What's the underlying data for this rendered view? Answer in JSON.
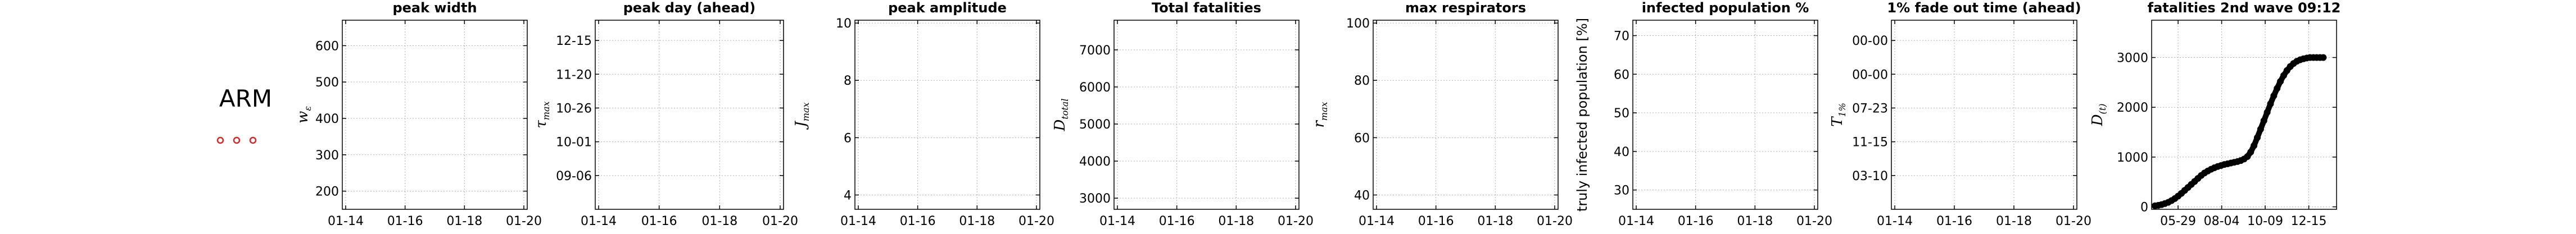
{
  "country": {
    "code": "ARM",
    "marker_color": "#d62728"
  },
  "chart_data": [
    {
      "type": "line",
      "title": "peak width",
      "ylabel_tex": [
        "w",
        "ε"
      ],
      "ylabel_plain": "",
      "xticks": [
        "01-14",
        "01-16",
        "01-18",
        "01-20"
      ],
      "yticks": [
        "200",
        "300",
        "400",
        "500",
        "600"
      ],
      "ylim": [
        150,
        670
      ],
      "ytick_values": [
        200,
        300,
        400,
        500,
        600
      ],
      "grid": true,
      "series": []
    },
    {
      "type": "line",
      "title": "peak day (ahead)",
      "ylabel_tex": [
        "τ",
        "max"
      ],
      "ylabel_plain": "",
      "xticks": [
        "01-14",
        "01-16",
        "01-18",
        "01-20"
      ],
      "yticks": [
        "09-06",
        "10-01",
        "10-26",
        "11-20",
        "12-15"
      ],
      "ylim": [
        0,
        5.6
      ],
      "ytick_values": [
        1,
        2,
        3,
        4,
        5
      ],
      "grid": true,
      "series": []
    },
    {
      "type": "line",
      "title": "peak amplitude",
      "ylabel_tex": [
        "J",
        "max"
      ],
      "ylabel_plain": "",
      "xticks": [
        "01-14",
        "01-16",
        "01-18",
        "01-20"
      ],
      "yticks": [
        "4",
        "6",
        "8",
        "10"
      ],
      "ylim": [
        3.5,
        10.1
      ],
      "ytick_values": [
        4,
        6,
        8,
        10
      ],
      "grid": true,
      "series": []
    },
    {
      "type": "line",
      "title": "Total fatalities",
      "ylabel_tex": [
        "D",
        "total"
      ],
      "ylabel_plain": "",
      "xticks": [
        "01-14",
        "01-16",
        "01-18",
        "01-20"
      ],
      "yticks": [
        "3000",
        "4000",
        "5000",
        "6000",
        "7000"
      ],
      "ylim": [
        2700,
        7800
      ],
      "ytick_values": [
        3000,
        4000,
        5000,
        6000,
        7000
      ],
      "grid": true,
      "series": []
    },
    {
      "type": "line",
      "title": "max respirators",
      "ylabel_tex": [
        "r",
        "max"
      ],
      "ylabel_plain": "",
      "xticks": [
        "01-14",
        "01-16",
        "01-18",
        "01-20"
      ],
      "yticks": [
        "40",
        "60",
        "80",
        "100"
      ],
      "ylim": [
        35,
        101
      ],
      "ytick_values": [
        40,
        60,
        80,
        100
      ],
      "grid": true,
      "series": []
    },
    {
      "type": "line",
      "title": "infected population %",
      "ylabel_tex": null,
      "ylabel_plain": "truly infected population [%]",
      "xticks": [
        "01-14",
        "01-16",
        "01-18",
        "01-20"
      ],
      "yticks": [
        "30",
        "40",
        "50",
        "60",
        "70"
      ],
      "ylim": [
        25,
        74
      ],
      "ytick_values": [
        30,
        40,
        50,
        60,
        70
      ],
      "grid": true,
      "series": []
    },
    {
      "type": "line",
      "title": "1% fade out time (ahead)",
      "ylabel_tex": [
        "T",
        "1%"
      ],
      "ylabel_plain": "",
      "xticks": [
        "01-14",
        "01-16",
        "01-18",
        "01-20"
      ],
      "yticks": [
        "03-10",
        "11-15",
        "07-23",
        "00-00",
        "00-00"
      ],
      "ylim": [
        0,
        5.6
      ],
      "ytick_values": [
        1,
        2,
        3,
        4,
        5
      ],
      "grid": true,
      "series": []
    },
    {
      "type": "scatter",
      "title": "fatalities 2nd wave 09:12",
      "ylabel_tex": [
        "D",
        "(t)"
      ],
      "ylabel_plain": "",
      "xticks": [
        "05-29",
        "08-04",
        "10-09",
        "12-15"
      ],
      "yticks": [
        "0",
        "1000",
        "2000",
        "3000"
      ],
      "ylim": [
        -50,
        3750
      ],
      "ytick_values": [
        0,
        1000,
        2000,
        3000
      ],
      "grid": true,
      "x_range": [
        0,
        270
      ],
      "xtick_values": [
        35,
        101,
        167,
        233
      ],
      "series": [
        {
          "x": [
            0,
            5,
            10,
            15,
            20,
            25,
            30,
            35,
            40,
            45,
            50,
            55,
            60,
            65,
            70,
            75,
            80,
            85,
            90,
            95,
            100,
            105,
            110,
            115,
            120,
            125,
            130,
            135,
            140,
            145,
            150,
            155,
            160,
            165,
            170,
            175,
            180,
            185,
            190,
            195,
            200,
            205,
            210,
            215,
            220,
            225,
            230,
            235,
            240,
            245,
            250,
            255
          ],
          "values": [
            20,
            30,
            45,
            65,
            90,
            125,
            165,
            215,
            270,
            330,
            390,
            450,
            510,
            570,
            630,
            680,
            720,
            755,
            785,
            810,
            830,
            850,
            865,
            880,
            895,
            910,
            930,
            960,
            1010,
            1100,
            1230,
            1390,
            1560,
            1730,
            1900,
            2070,
            2230,
            2380,
            2520,
            2640,
            2740,
            2820,
            2880,
            2925,
            2955,
            2975,
            2990,
            3000,
            3000,
            3000,
            3000,
            3000
          ]
        }
      ]
    }
  ]
}
